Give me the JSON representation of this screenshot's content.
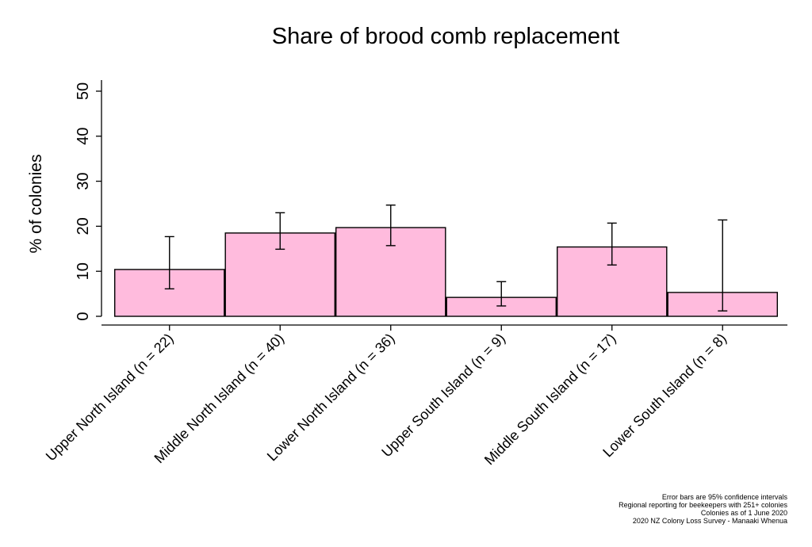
{
  "chart_data": {
    "type": "bar",
    "title": "Share of brood comb replacement",
    "xlabel": "",
    "ylabel": "% of colonies",
    "ylim": [
      0,
      50
    ],
    "yticks": [
      0,
      10,
      20,
      30,
      40,
      50
    ],
    "categories": [
      "Upper North Island (n = 22)",
      "Middle North Island (n = 40)",
      "Lower North Island (n = 36)",
      "Upper South Island (n = 9)",
      "Middle South Island (n = 17)",
      "Lower South Island (n = 8)"
    ],
    "values": [
      10.4,
      18.5,
      19.7,
      4.2,
      15.4,
      5.3
    ],
    "ci_low": [
      6.1,
      14.9,
      15.7,
      2.3,
      11.4,
      1.2
    ],
    "ci_high": [
      17.7,
      23.0,
      24.7,
      7.7,
      20.7,
      21.4
    ],
    "bar_color": "#ffbbdd",
    "grid": false,
    "legend": "none"
  },
  "notes": [
    "Error bars are 95% confidence intervals",
    "Regional reporting for beekeepers with 251+ colonies",
    "Colonies as of 1 June 2020",
    "2020 NZ Colony Loss Survey - Manaaki Whenua"
  ]
}
